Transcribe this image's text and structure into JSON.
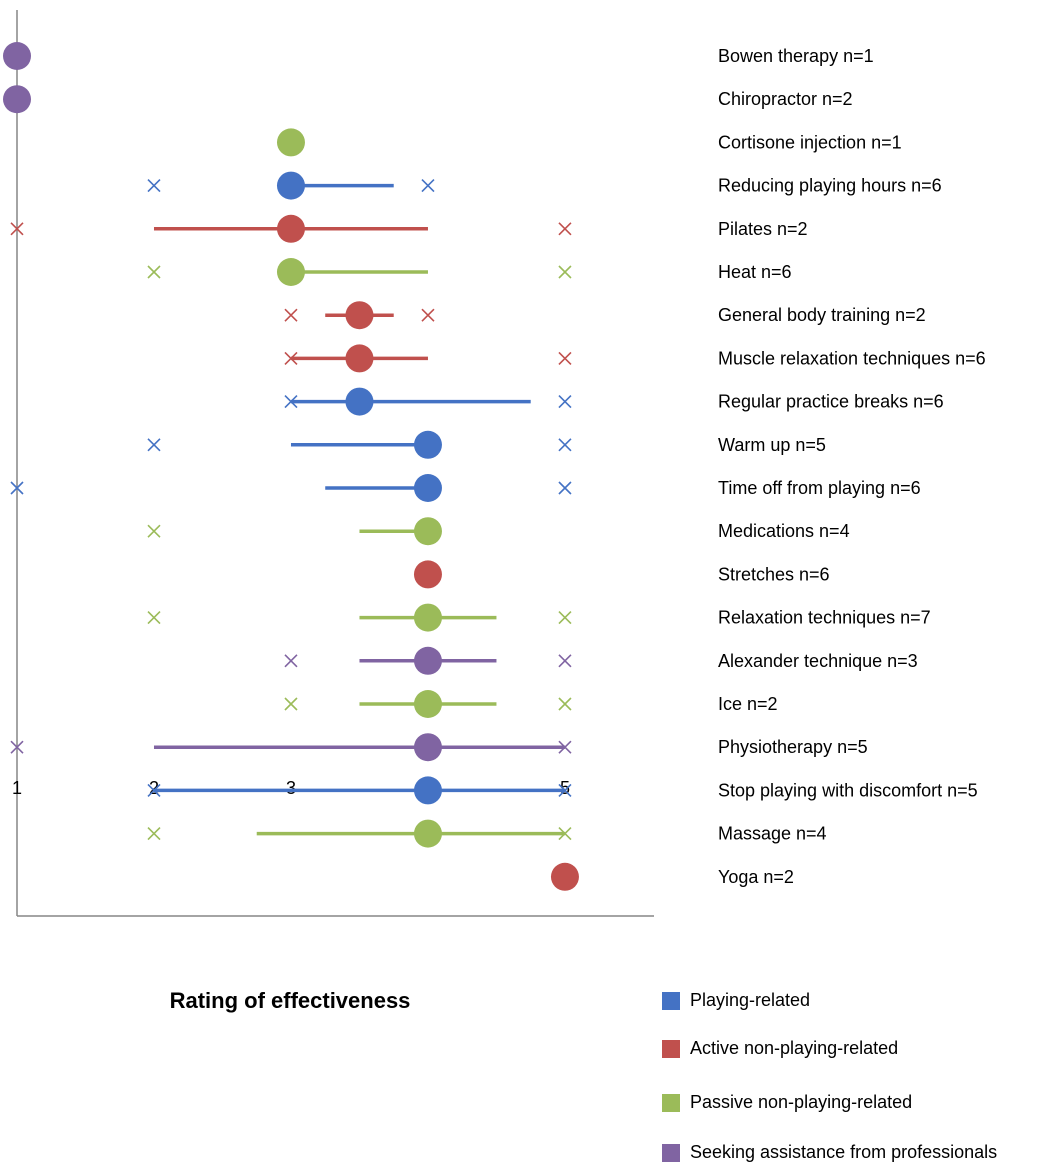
{
  "chart_data": {
    "type": "scatter",
    "xlabel": "Rating of effectiveness",
    "ylabel": "",
    "xlim": [
      1,
      5.65
    ],
    "xticks": [
      "1",
      "2",
      "3",
      "4",
      "5"
    ],
    "series": [
      {
        "key": "playing",
        "name": "Playing-related",
        "color": "#4472C4"
      },
      {
        "key": "active",
        "name": "Active non-playing-related",
        "color": "#C0504D"
      },
      {
        "key": "passive",
        "name": "Passive non-playing-related",
        "color": "#9BBB59"
      },
      {
        "key": "professional",
        "name": "Seeking assistance from professionals",
        "color": "#8064A2"
      }
    ],
    "items": [
      {
        "label": "Bowen therapy n=1",
        "series": "professional",
        "median": 1,
        "iqr": null,
        "min": null,
        "max": null
      },
      {
        "label": "Chiropractor n=2",
        "series": "professional",
        "median": 1,
        "iqr": null,
        "min": null,
        "max": null
      },
      {
        "label": "Cortisone injection n=1",
        "series": "passive",
        "median": 3,
        "iqr": null,
        "min": null,
        "max": null
      },
      {
        "label": "Reducing playing hours n=6",
        "series": "playing",
        "median": 3,
        "iqr": [
          3,
          3.75
        ],
        "min": 2,
        "max": 4
      },
      {
        "label": "Pilates n=2",
        "series": "active",
        "median": 3,
        "iqr": [
          2,
          4
        ],
        "min": 1,
        "max": 5
      },
      {
        "label": "Heat n=6",
        "series": "passive",
        "median": 3,
        "iqr": [
          3,
          4
        ],
        "min": 2,
        "max": 5
      },
      {
        "label": "General body training n=2",
        "series": "active",
        "median": 3.5,
        "iqr": [
          3.25,
          3.75
        ],
        "min": 3,
        "max": 4
      },
      {
        "label": "Muscle relaxation techniques n=6",
        "series": "active",
        "median": 3.5,
        "iqr": [
          3,
          4
        ],
        "min": 3,
        "max": 5
      },
      {
        "label": "Regular practice breaks n=6",
        "series": "playing",
        "median": 3.5,
        "iqr": [
          3,
          4.75
        ],
        "min": 3,
        "max": 5
      },
      {
        "label": "Warm up n=5",
        "series": "playing",
        "median": 4,
        "iqr": [
          3,
          4
        ],
        "min": 2,
        "max": 5
      },
      {
        "label": "Time off from playing n=6",
        "series": "playing",
        "median": 4,
        "iqr": [
          3.25,
          4
        ],
        "min": 1,
        "max": 5
      },
      {
        "label": "Medications n=4",
        "series": "passive",
        "median": 4,
        "iqr": [
          3.5,
          4
        ],
        "min": 2,
        "max": null
      },
      {
        "label": "Stretches n=6",
        "series": "active",
        "median": 4,
        "iqr": null,
        "min": null,
        "max": null
      },
      {
        "label": "Relaxation techniques n=7",
        "series": "passive",
        "median": 4,
        "iqr": [
          3.5,
          4.5
        ],
        "min": 2,
        "max": 5
      },
      {
        "label": "Alexander technique n=3",
        "series": "professional",
        "median": 4,
        "iqr": [
          3.5,
          4.5
        ],
        "min": 3,
        "max": 5
      },
      {
        "label": "Ice n=2",
        "series": "passive",
        "median": 4,
        "iqr": [
          3.5,
          4.5
        ],
        "min": 3,
        "max": 5
      },
      {
        "label": "Physiotherapy n=5",
        "series": "professional",
        "median": 4,
        "iqr": [
          2,
          5
        ],
        "min": 1,
        "max": 5
      },
      {
        "label": "Stop playing with discomfort n=5",
        "series": "playing",
        "median": 4,
        "iqr": [
          2,
          5
        ],
        "min": 2,
        "max": 5
      },
      {
        "label": "Massage n=4",
        "series": "passive",
        "median": 4,
        "iqr": [
          2.75,
          5
        ],
        "min": 2,
        "max": 5
      },
      {
        "label": "Yoga n=2",
        "series": "active",
        "median": 5,
        "iqr": null,
        "min": null,
        "max": null
      }
    ]
  }
}
